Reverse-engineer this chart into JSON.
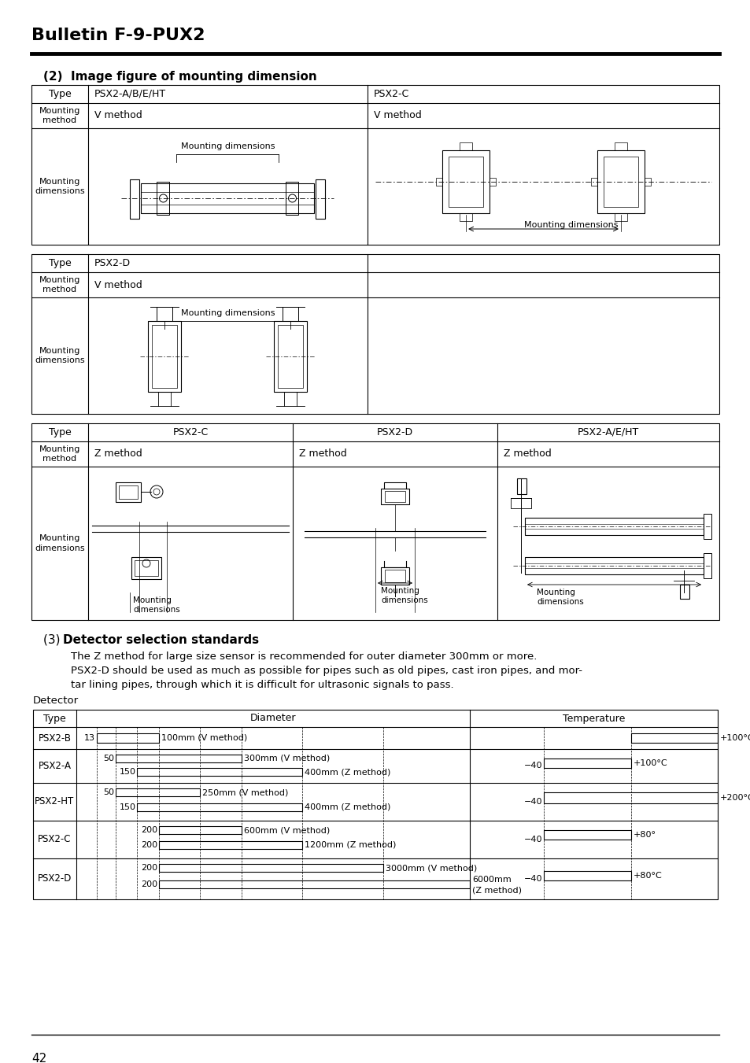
{
  "page_title": "Bulletin F-9-PUX2",
  "page_number": "42",
  "section2_title": "(2)  Image figure of mounting dimension",
  "section3_title": "(3)  Detector selection standards",
  "section3_text1": "The Z method for large size sensor is recommended for outer diameter 300mm or more.",
  "section3_text2": "PSX2-D should be used as much as possible for pipes such as old pipes, cast iron pipes, and mor-",
  "section3_text3": "tar lining pipes, through which it is difficult for ultrasonic signals to pass.",
  "detector_label": "Detector",
  "bg_color": "#ffffff",
  "text_color": "#000000"
}
